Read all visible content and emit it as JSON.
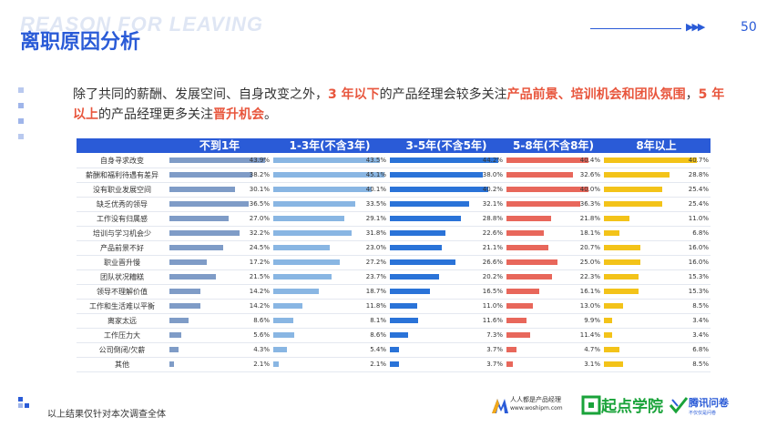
{
  "header": {
    "watermark": "REASON FOR LEAVING",
    "title": "离职原因分析",
    "page_arrow": "▶▶▶",
    "page_number": "50"
  },
  "summary": {
    "part1": "除了共同的薪酬、发展空间、自身改变之外，",
    "hl1": "3 年以下",
    "part2": "的产品经理会较多关注",
    "hl2": "产品前景、培训机会和团队氛围",
    "part3": "，",
    "hl3": "5 年以上",
    "part4": "的产品经理更多关注",
    "hl4": "晋升机会",
    "part5": "。"
  },
  "colors": {
    "header_bg": "#2a5bd7",
    "col1": "#7f9cc7",
    "col2": "#89b6e3",
    "col3": "#2a73d8",
    "col4": "#e8675b",
    "col5": "#f3c319"
  },
  "chart_data": {
    "type": "table",
    "columns": [
      "不到1年",
      "1-3年(不含3年)",
      "3-5年(不含5年)",
      "5-8年(不含8年)",
      "8年以上"
    ],
    "rows": [
      {
        "label": "自身寻求改变",
        "values": [
          "43.9%",
          "43.5%",
          "44.2%",
          "40.4%",
          "40.7%"
        ]
      },
      {
        "label": "薪酬和福利待遇有差异",
        "values": [
          "38.2%",
          "45.1%",
          "38.0%",
          "32.6%",
          "28.8%"
        ]
      },
      {
        "label": "没有职业发展空间",
        "values": [
          "30.1%",
          "40.1%",
          "40.2%",
          "40.0%",
          "25.4%"
        ]
      },
      {
        "label": "缺乏优秀的领导",
        "values": [
          "36.5%",
          "33.5%",
          "32.1%",
          "36.3%",
          "25.4%"
        ]
      },
      {
        "label": "工作没有归属感",
        "values": [
          "27.0%",
          "29.1%",
          "28.8%",
          "21.8%",
          "11.0%"
        ]
      },
      {
        "label": "培训与学习机会少",
        "values": [
          "32.2%",
          "31.8%",
          "22.6%",
          "18.1%",
          "6.8%"
        ]
      },
      {
        "label": "产品前景不好",
        "values": [
          "24.5%",
          "23.0%",
          "21.1%",
          "20.7%",
          "16.0%"
        ]
      },
      {
        "label": "职业晋升慢",
        "values": [
          "17.2%",
          "27.2%",
          "26.6%",
          "25.0%",
          "16.0%"
        ]
      },
      {
        "label": "团队状况糟糕",
        "values": [
          "21.5%",
          "23.7%",
          "20.2%",
          "22.3%",
          "15.3%"
        ]
      },
      {
        "label": "领导不理解价值",
        "values": [
          "14.2%",
          "18.7%",
          "16.5%",
          "16.1%",
          "15.3%"
        ]
      },
      {
        "label": "工作和生活难以平衡",
        "values": [
          "14.2%",
          "11.8%",
          "11.0%",
          "13.0%",
          "8.5%"
        ]
      },
      {
        "label": "离家太远",
        "values": [
          "8.6%",
          "8.1%",
          "11.6%",
          "9.9%",
          "3.4%"
        ]
      },
      {
        "label": "工作压力大",
        "values": [
          "5.6%",
          "8.6%",
          "7.3%",
          "11.4%",
          "3.4%"
        ]
      },
      {
        "label": "公司倒闭/欠薪",
        "values": [
          "4.3%",
          "5.4%",
          "3.7%",
          "4.7%",
          "6.8%"
        ]
      },
      {
        "label": "其他",
        "values": [
          "2.1%",
          "2.1%",
          "3.7%",
          "3.1%",
          "8.5%"
        ]
      }
    ]
  },
  "footer": {
    "note": "以上结果仅针对本次调查全体",
    "logo1_name": "人人都是产品经理",
    "logo1_url": "www.woshipm.com",
    "logo2_name": "起点学院",
    "logo3_name": "腾讯问卷",
    "logo3_sub": "不仅仅是问卷"
  }
}
